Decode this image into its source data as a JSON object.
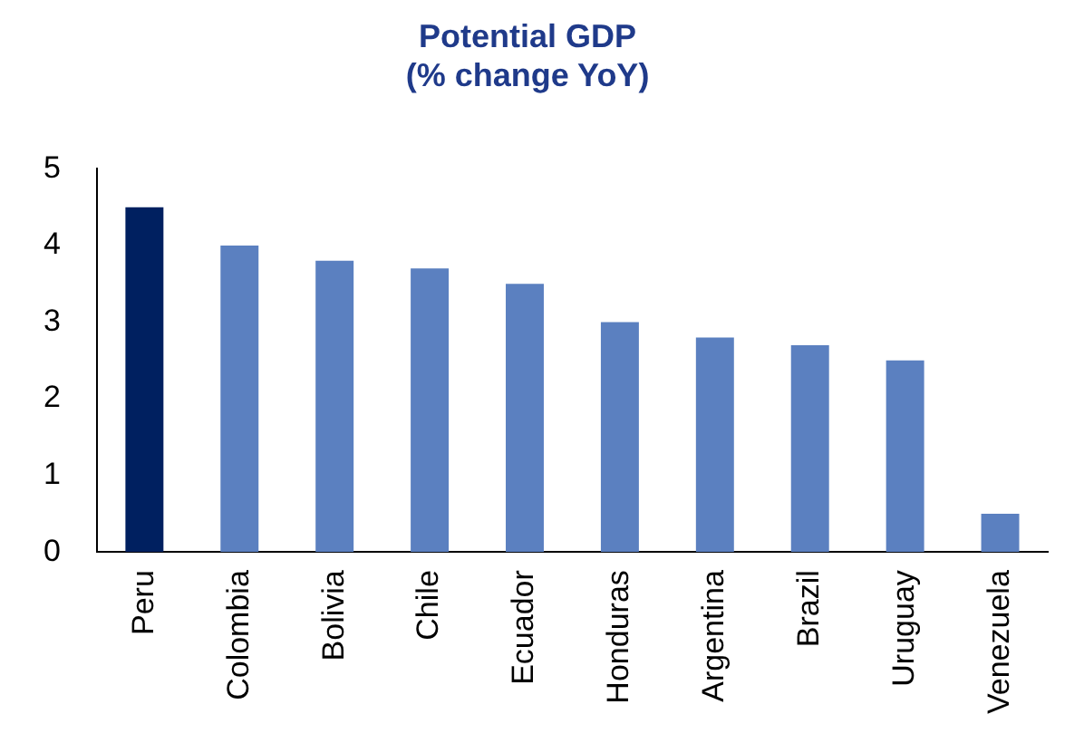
{
  "chart_data": {
    "type": "bar",
    "title": "Potential GDP\n(% change YoY)",
    "categories": [
      "Peru",
      "Colombia",
      "Bolivia",
      "Chile",
      "Ecuador",
      "Honduras",
      "Argentina",
      "Brazil",
      "Uruguay",
      "Venezuela"
    ],
    "values": [
      4.5,
      4.0,
      3.8,
      3.7,
      3.5,
      3.0,
      2.8,
      2.7,
      2.5,
      0.5
    ],
    "colors": [
      "#002060",
      "#5b80c0",
      "#5b80c0",
      "#5b80c0",
      "#5b80c0",
      "#5b80c0",
      "#5b80c0",
      "#5b80c0",
      "#5b80c0",
      "#5b80c0"
    ],
    "ylim": [
      0,
      5
    ],
    "yticks": [
      0,
      1,
      2,
      3,
      4,
      5
    ],
    "grid": false,
    "legend": false
  }
}
